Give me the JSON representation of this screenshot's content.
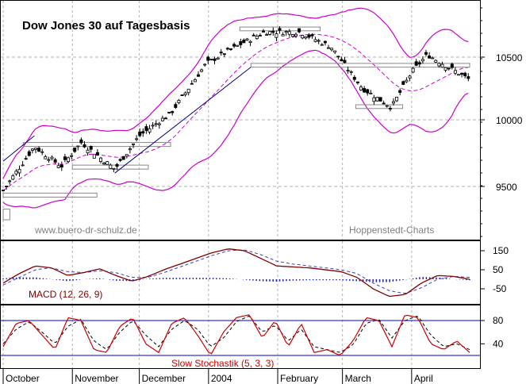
{
  "chart_data": [
    {
      "type": "candlestick",
      "title": "Dow Jones 30 auf Tagesbasis",
      "watermark_left": "www.buero-dr-schulz.de",
      "watermark_right": "Hoppenstedt-Charts",
      "y_ticks": [
        9500,
        10000,
        10500
      ],
      "ylim": [
        9130,
        10870
      ],
      "x_months": [
        "October",
        "November",
        "December",
        "2004",
        "February",
        "March",
        "April"
      ],
      "date_range": [
        "2003-10-01",
        "2004-04-27"
      ],
      "overlays": [
        "Bollinger bands",
        "moving average (dashed)",
        "trend lines",
        "support/resistance boxes"
      ],
      "close_estimates": [
        {
          "date": "2003-10-01",
          "close": 9470
        },
        {
          "date": "2003-10-15",
          "close": 9800
        },
        {
          "date": "2003-10-27",
          "close": 9650
        },
        {
          "date": "2003-11-05",
          "close": 9830
        },
        {
          "date": "2003-11-20",
          "close": 9630
        },
        {
          "date": "2003-12-01",
          "close": 9880
        },
        {
          "date": "2003-12-15",
          "close": 10050
        },
        {
          "date": "2003-12-31",
          "close": 10450
        },
        {
          "date": "2004-01-15",
          "close": 10600
        },
        {
          "date": "2004-01-26",
          "close": 10700
        },
        {
          "date": "2004-02-11",
          "close": 10700
        },
        {
          "date": "2004-02-25",
          "close": 10580
        },
        {
          "date": "2004-03-10",
          "close": 10250
        },
        {
          "date": "2004-03-23",
          "close": 10100
        },
        {
          "date": "2004-04-01",
          "close": 10380
        },
        {
          "date": "2004-04-08",
          "close": 10520
        },
        {
          "date": "2004-04-27",
          "close": 10320
        }
      ],
      "colors": {
        "candles": "#000000",
        "bollinger": "#cc00cc",
        "ma": "#cc00cc",
        "grid": "#b0b0b0"
      }
    },
    {
      "type": "line",
      "label": "MACD (12, 26, 9)",
      "y_ticks": [
        150,
        50,
        -50
      ],
      "ylim": [
        -110,
        200
      ],
      "series": [
        {
          "key": "macd",
          "values": [
            -20,
            30,
            70,
            60,
            20,
            35,
            55,
            20,
            -10,
            15,
            50,
            80,
            110,
            140,
            160,
            150,
            110,
            70,
            65,
            60,
            50,
            40,
            10,
            -50,
            -90,
            -80,
            -20,
            20,
            15,
            0
          ]
        },
        {
          "key": "signal",
          "values": [
            -30,
            10,
            50,
            60,
            40,
            35,
            45,
            35,
            10,
            10,
            35,
            65,
            95,
            125,
            150,
            155,
            130,
            95,
            80,
            70,
            60,
            50,
            30,
            -20,
            -60,
            -75,
            -45,
            0,
            15,
            10
          ]
        }
      ],
      "colors": {
        "macd": "#800000",
        "signal": "#4040c0",
        "histogram": "#2020b0"
      }
    },
    {
      "type": "line",
      "label": "Slow Stochastik (5, 3, 3)",
      "y_ticks": [
        80,
        40
      ],
      "ylim": [
        0,
        100
      ],
      "reference_lines": [
        80,
        20
      ],
      "series": [
        {
          "key": "k",
          "values": [
            35,
            75,
            80,
            55,
            30,
            85,
            80,
            30,
            25,
            70,
            85,
            40,
            25,
            75,
            85,
            55,
            20,
            60,
            85,
            90,
            50,
            80,
            35,
            75,
            25,
            30,
            20,
            45,
            85,
            80,
            35,
            90,
            85,
            40,
            30,
            45,
            25
          ]
        },
        {
          "key": "d",
          "values": [
            40,
            65,
            78,
            60,
            40,
            70,
            82,
            45,
            30,
            60,
            80,
            55,
            35,
            65,
            80,
            65,
            35,
            50,
            78,
            88,
            60,
            72,
            45,
            65,
            35,
            30,
            25,
            38,
            75,
            82,
            50,
            80,
            88,
            55,
            35,
            40,
            30
          ]
        }
      ],
      "colors": {
        "k": "#cc0000",
        "d": "#000000",
        "reference": "#0000cc"
      }
    }
  ]
}
